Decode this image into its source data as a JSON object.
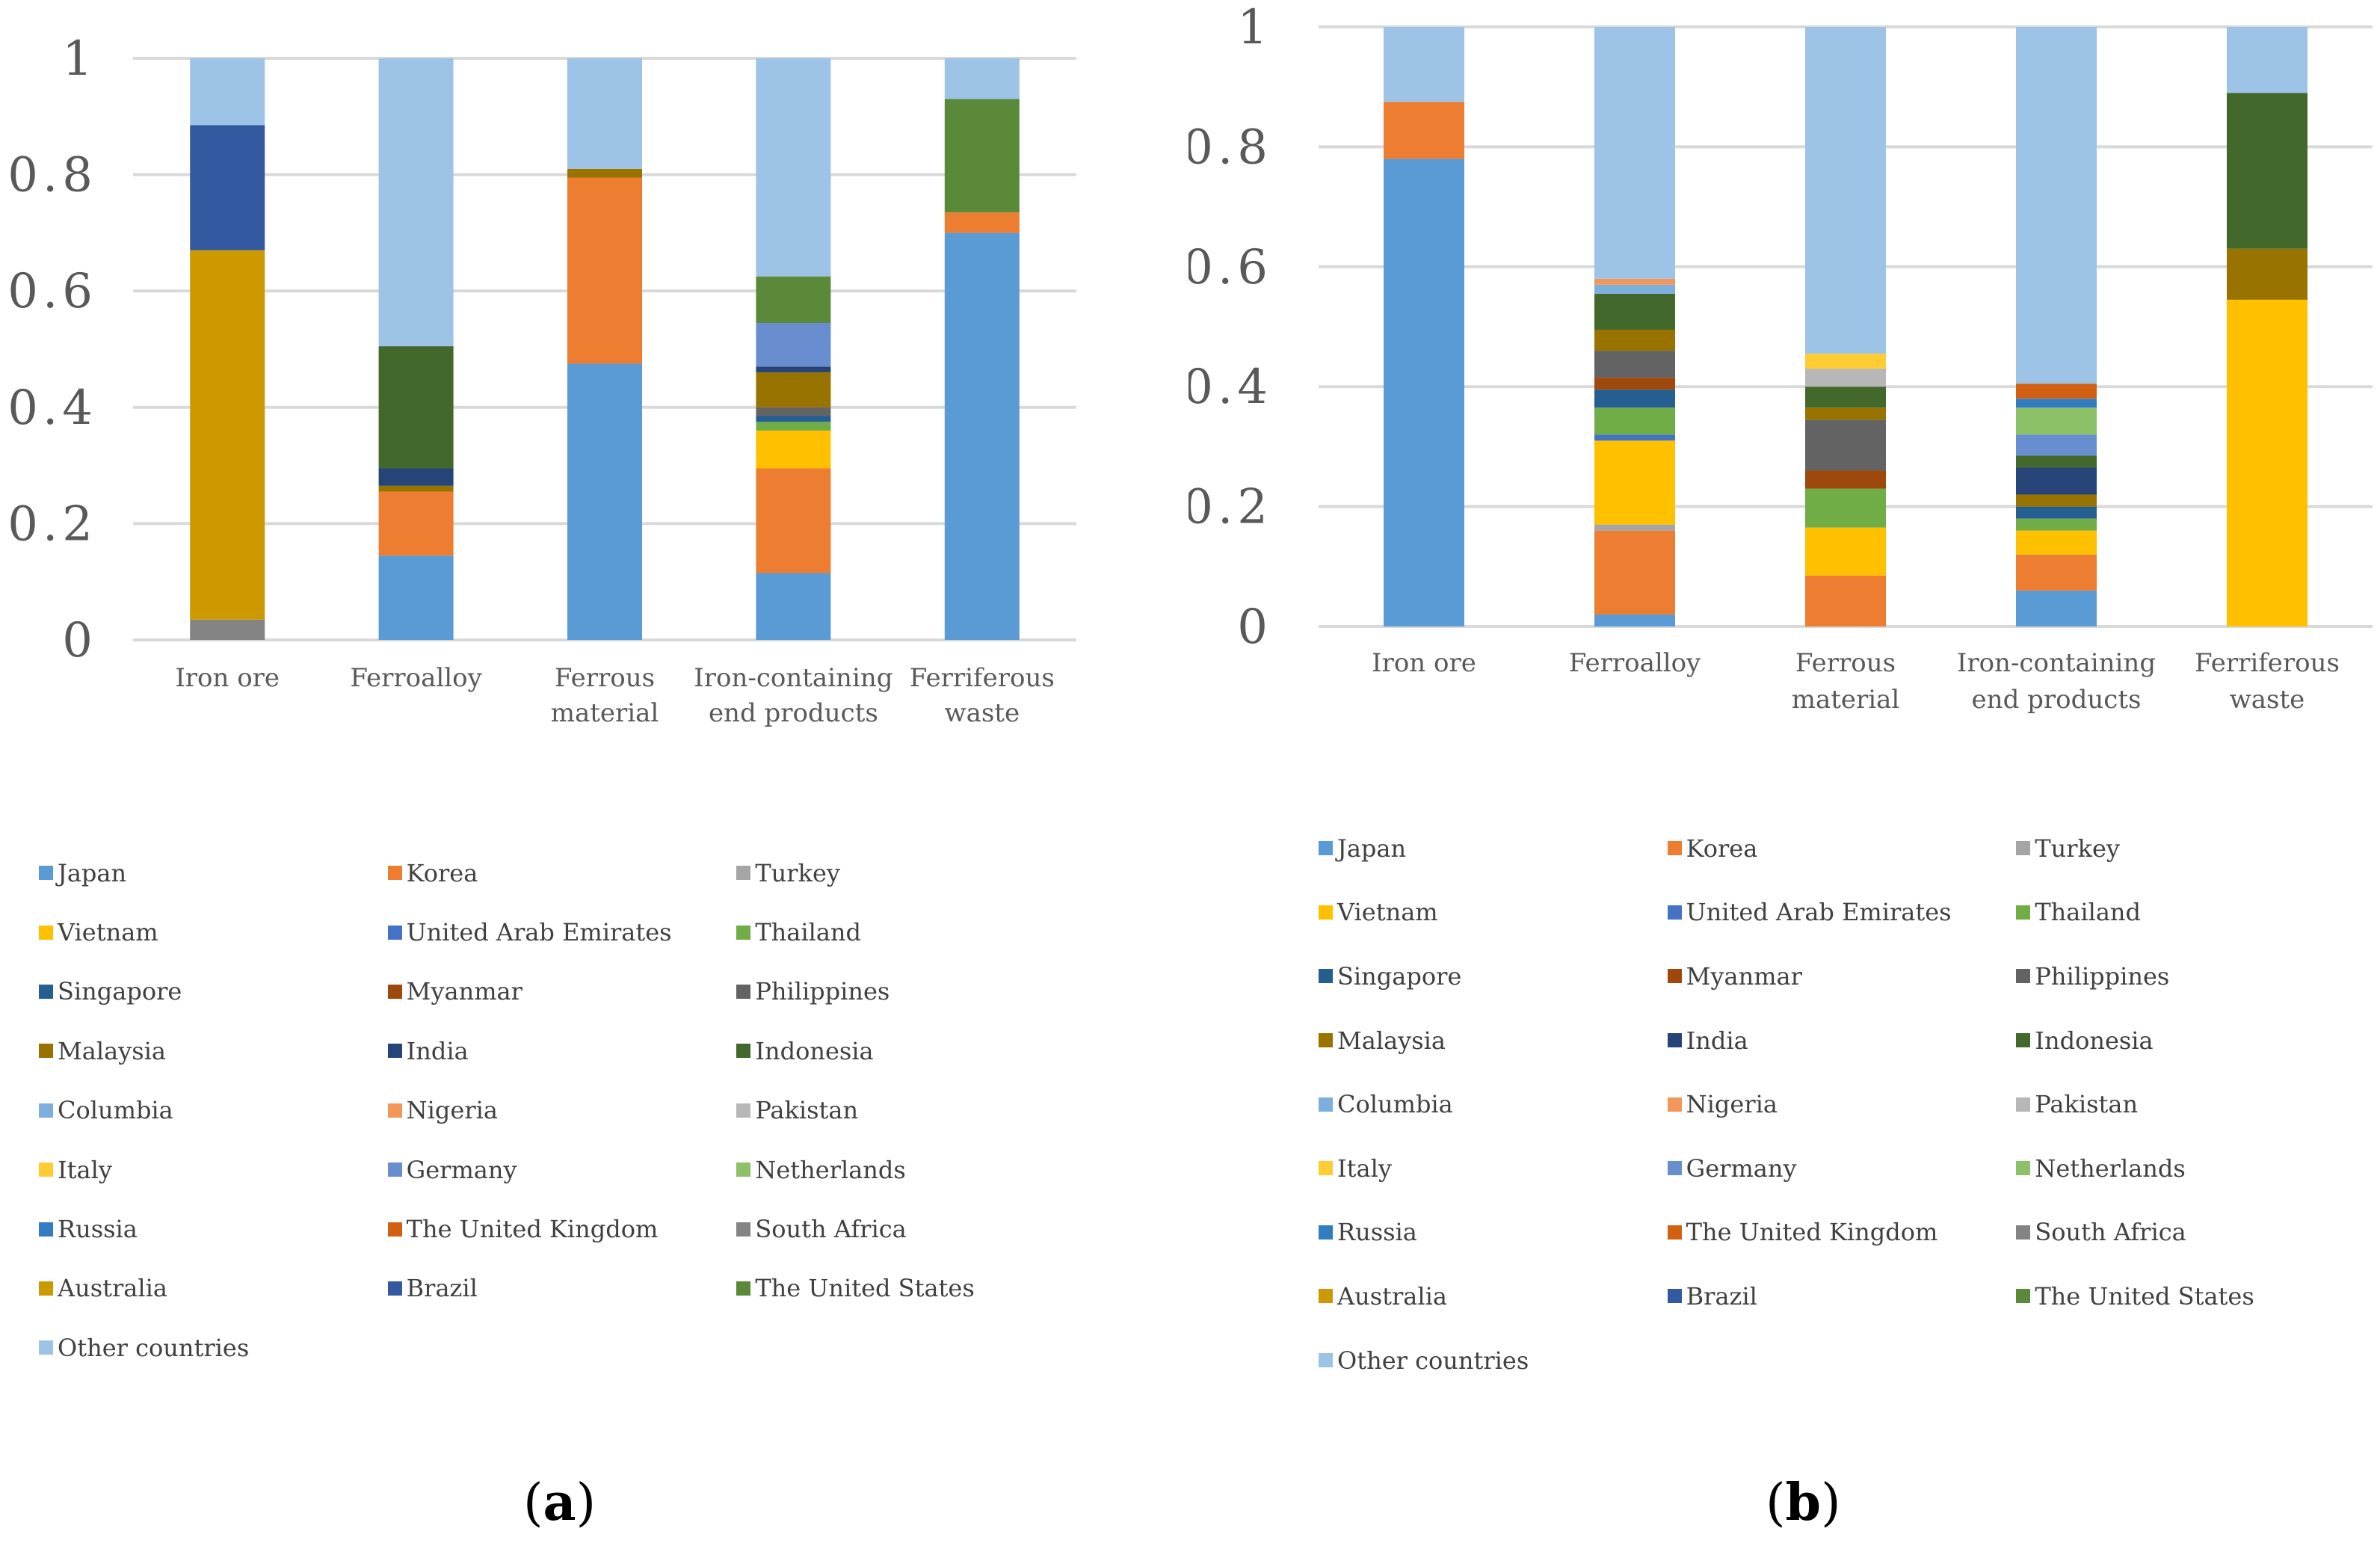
{
  "chart_data": [
    {
      "type": "bar",
      "stacked": true,
      "panel_label": "a",
      "categories": [
        [
          "Iron ore"
        ],
        [
          "Ferroalloy"
        ],
        [
          "Ferrous",
          "material"
        ],
        [
          "Iron-containing",
          "end products"
        ],
        [
          "Ferriferous",
          "waste"
        ]
      ],
      "ylim": [
        0,
        1
      ],
      "yticks": [
        "0",
        "0.2",
        "0.4",
        "0.6",
        "0.8",
        "1"
      ],
      "ytick_values": [
        0,
        0.2,
        0.4,
        0.6,
        0.8,
        1
      ],
      "grid": true,
      "legend_position": "bottom",
      "series": [
        {
          "name": "Japan",
          "color": "#5b9bd5",
          "values": [
            0,
            0.145,
            0.475,
            0.115,
            0.7
          ]
        },
        {
          "name": "Korea",
          "color": "#ed7d31",
          "values": [
            0,
            0.11,
            0.32,
            0.18,
            0.035
          ]
        },
        {
          "name": "Turkey",
          "color": "#a5a5a5",
          "values": [
            0,
            0,
            0,
            0,
            0
          ]
        },
        {
          "name": "Vietnam",
          "color": "#ffc000",
          "values": [
            0,
            0,
            0,
            0.065,
            0
          ]
        },
        {
          "name": "United Arab Emirates",
          "color": "#4472c4",
          "values": [
            0,
            0,
            0,
            0,
            0
          ]
        },
        {
          "name": "Thailand",
          "color": "#70ad47",
          "values": [
            0,
            0,
            0,
            0.015,
            0
          ]
        },
        {
          "name": "Singapore",
          "color": "#255e91",
          "values": [
            0,
            0,
            0,
            0.01,
            0
          ]
        },
        {
          "name": "Myanmar",
          "color": "#9e480e",
          "values": [
            0,
            0,
            0,
            0,
            0
          ]
        },
        {
          "name": "Philippines",
          "color": "#636363",
          "values": [
            0,
            0,
            0,
            0.015,
            0
          ]
        },
        {
          "name": "Malaysia",
          "color": "#997300",
          "values": [
            0,
            0.01,
            0.015,
            0.06,
            0
          ]
        },
        {
          "name": "India",
          "color": "#264478",
          "values": [
            0,
            0.03,
            0,
            0.01,
            0
          ]
        },
        {
          "name": "Indonesia",
          "color": "#43682b",
          "values": [
            0,
            0.21,
            0,
            0,
            0
          ]
        },
        {
          "name": "Columbia",
          "color": "#7cafdd",
          "values": [
            0,
            0,
            0,
            0,
            0
          ]
        },
        {
          "name": "Nigeria",
          "color": "#f1975a",
          "values": [
            0,
            0,
            0,
            0,
            0
          ]
        },
        {
          "name": "Pakistan",
          "color": "#b7b7b7",
          "values": [
            0,
            0,
            0,
            0,
            0
          ]
        },
        {
          "name": "Italy",
          "color": "#ffcd33",
          "values": [
            0,
            0,
            0,
            0,
            0
          ]
        },
        {
          "name": "Germany",
          "color": "#698ed0",
          "values": [
            0,
            0,
            0,
            0.075,
            0
          ]
        },
        {
          "name": "Netherlands",
          "color": "#8cc168",
          "values": [
            0,
            0,
            0,
            0,
            0
          ]
        },
        {
          "name": "Russia",
          "color": "#327dc2",
          "values": [
            0,
            0,
            0,
            0,
            0
          ]
        },
        {
          "name": "The United Kingdom",
          "color": "#d26012",
          "values": [
            0,
            0,
            0,
            0,
            0
          ]
        },
        {
          "name": "South Africa",
          "color": "#848484",
          "values": [
            0.035,
            0,
            0,
            0,
            0
          ]
        },
        {
          "name": "Australia",
          "color": "#cc9a00",
          "values": [
            0.635,
            0,
            0,
            0,
            0
          ]
        },
        {
          "name": "Brazil",
          "color": "#335aa1",
          "values": [
            0.215,
            0,
            0,
            0,
            0
          ]
        },
        {
          "name": "The United States",
          "color": "#5a8a39",
          "values": [
            0,
            0,
            0,
            0.08,
            0.195
          ]
        },
        {
          "name": "Other countries",
          "color": "#9dc3e6",
          "values": [
            0.115,
            0.495,
            0.19,
            0.375,
            0.07
          ]
        }
      ]
    },
    {
      "type": "bar",
      "stacked": true,
      "panel_label": "b",
      "categories": [
        [
          "Iron ore"
        ],
        [
          "Ferroalloy"
        ],
        [
          "Ferrous",
          "material"
        ],
        [
          "Iron-containing",
          "end products"
        ],
        [
          "Ferriferous",
          "waste"
        ]
      ],
      "ylim": [
        0,
        1
      ],
      "yticks": [
        "0",
        "0.2",
        "0.4",
        "0.6",
        "0.8",
        "1"
      ],
      "ytick_values": [
        0,
        0.2,
        0.4,
        0.6,
        0.8,
        1
      ],
      "grid": true,
      "legend_position": "bottom",
      "series": [
        {
          "name": "Japan",
          "color": "#5b9bd5",
          "values": [
            0.78,
            0.02,
            0,
            0.06,
            0
          ]
        },
        {
          "name": "Korea",
          "color": "#ed7d31",
          "values": [
            0.095,
            0.14,
            0.085,
            0.06,
            0
          ]
        },
        {
          "name": "Turkey",
          "color": "#a5a5a5",
          "values": [
            0,
            0.01,
            0,
            0,
            0
          ]
        },
        {
          "name": "Vietnam",
          "color": "#ffc000",
          "values": [
            0,
            0.14,
            0.08,
            0.04,
            0.545
          ]
        },
        {
          "name": "United Arab Emirates",
          "color": "#4472c4",
          "values": [
            0,
            0.01,
            0,
            0,
            0
          ]
        },
        {
          "name": "Thailand",
          "color": "#70ad47",
          "values": [
            0,
            0.045,
            0.065,
            0.02,
            0
          ]
        },
        {
          "name": "Singapore",
          "color": "#255e91",
          "values": [
            0,
            0.03,
            0,
            0.02,
            0
          ]
        },
        {
          "name": "Myanmar",
          "color": "#9e480e",
          "values": [
            0,
            0.02,
            0.03,
            0,
            0
          ]
        },
        {
          "name": "Philippines",
          "color": "#636363",
          "values": [
            0,
            0.045,
            0.085,
            0,
            0
          ]
        },
        {
          "name": "Malaysia",
          "color": "#997300",
          "values": [
            0,
            0.035,
            0.02,
            0.02,
            0.085
          ]
        },
        {
          "name": "India",
          "color": "#264478",
          "values": [
            0,
            0,
            0,
            0.045,
            0
          ]
        },
        {
          "name": "Indonesia",
          "color": "#43682b",
          "values": [
            0,
            0.06,
            0.035,
            0.02,
            0.26
          ]
        },
        {
          "name": "Columbia",
          "color": "#7cafdd",
          "values": [
            0,
            0.015,
            0,
            0,
            0
          ]
        },
        {
          "name": "Nigeria",
          "color": "#f1975a",
          "values": [
            0,
            0.01,
            0,
            0,
            0
          ]
        },
        {
          "name": "Pakistan",
          "color": "#b7b7b7",
          "values": [
            0,
            0,
            0.03,
            0,
            0
          ]
        },
        {
          "name": "Italy",
          "color": "#ffcd33",
          "values": [
            0,
            0,
            0.025,
            0,
            0
          ]
        },
        {
          "name": "Germany",
          "color": "#698ed0",
          "values": [
            0,
            0,
            0,
            0.035,
            0
          ]
        },
        {
          "name": "Netherlands",
          "color": "#8cc168",
          "values": [
            0,
            0,
            0,
            0.045,
            0
          ]
        },
        {
          "name": "Russia",
          "color": "#327dc2",
          "values": [
            0,
            0,
            0,
            0.015,
            0
          ]
        },
        {
          "name": "The United Kingdom",
          "color": "#d26012",
          "values": [
            0,
            0,
            0,
            0.025,
            0
          ]
        },
        {
          "name": "South Africa",
          "color": "#848484",
          "values": [
            0,
            0,
            0,
            0,
            0
          ]
        },
        {
          "name": "Australia",
          "color": "#cc9a00",
          "values": [
            0,
            0,
            0,
            0,
            0
          ]
        },
        {
          "name": "Brazil",
          "color": "#335aa1",
          "values": [
            0,
            0,
            0,
            0,
            0
          ]
        },
        {
          "name": "The United States",
          "color": "#5a8a39",
          "values": [
            0,
            0,
            0,
            0,
            0
          ]
        },
        {
          "name": "Other countries",
          "color": "#9dc3e6",
          "values": [
            0.125,
            0.42,
            0.545,
            0.595,
            0.11
          ]
        }
      ]
    }
  ]
}
